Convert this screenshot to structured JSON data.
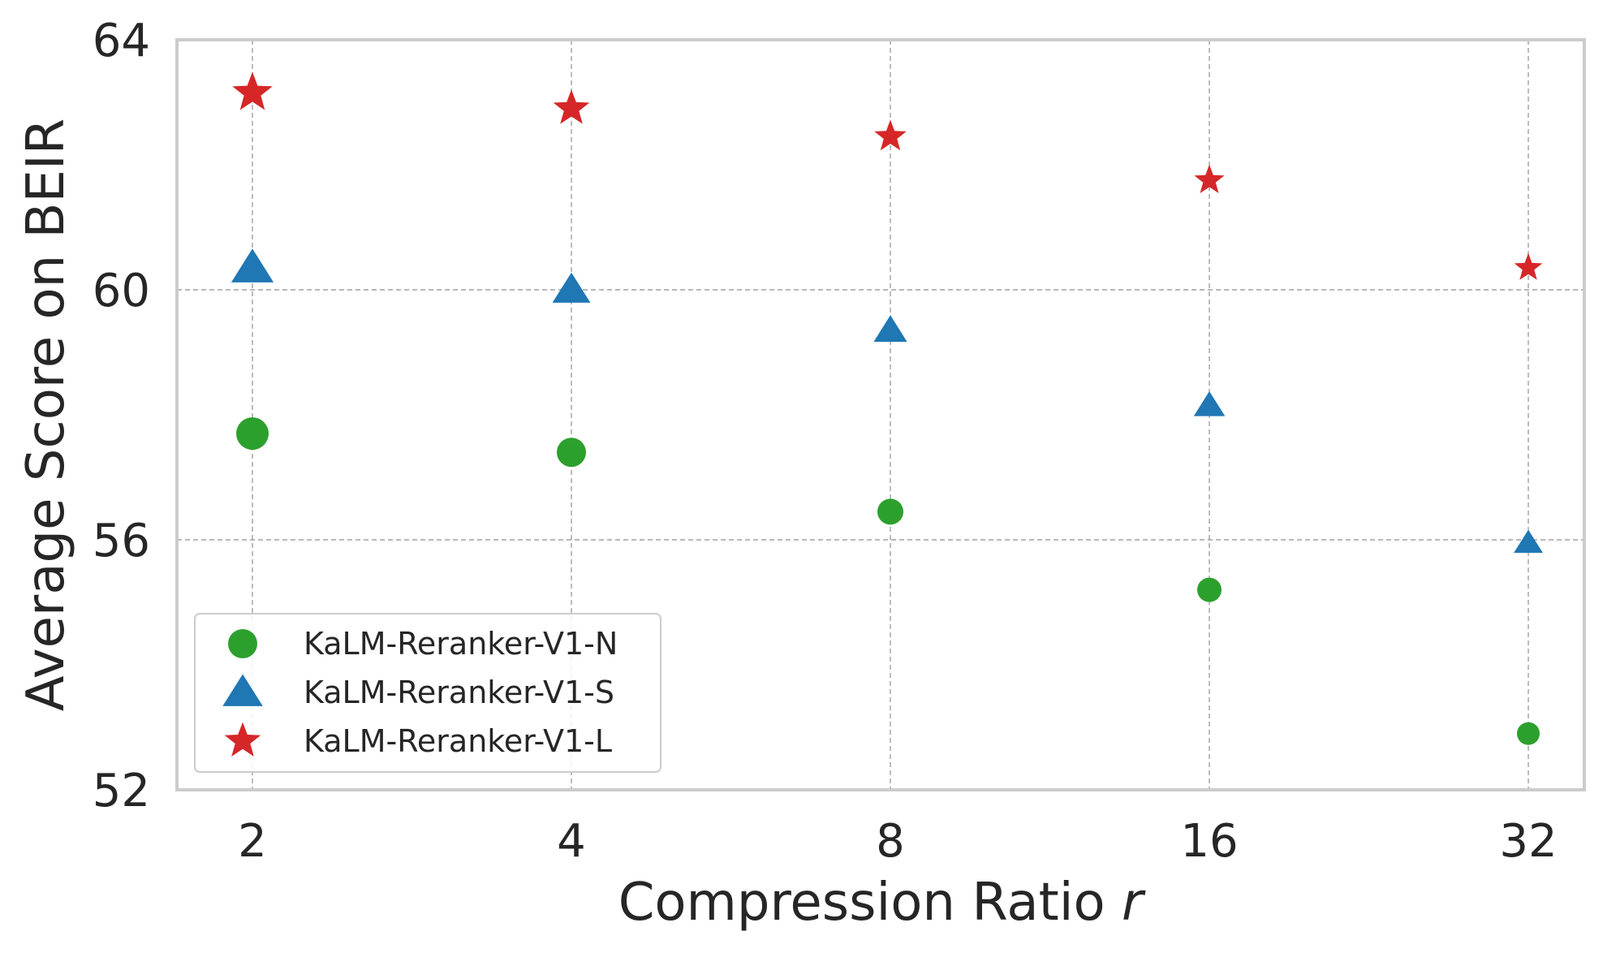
{
  "chart_data": {
    "type": "scatter",
    "xlabel": "Compression Ratio ",
    "xlabel_var": "r",
    "ylabel": "Average Score on BEIR",
    "x": [
      "2",
      "4",
      "8",
      "16",
      "32"
    ],
    "x_scale": "log2",
    "ylim": [
      52,
      64
    ],
    "y_ticks": [
      "52",
      "56",
      "60",
      "64"
    ],
    "grid": true,
    "legend_position": "lower-left",
    "series": [
      {
        "name": "KaLM-Reranker-V1-N",
        "marker": "circle",
        "color": "#2ca02c",
        "values": [
          57.7,
          57.4,
          56.45,
          55.2,
          52.9
        ]
      },
      {
        "name": "KaLM-Reranker-V1-S",
        "marker": "triangle",
        "color": "#1f77b4",
        "values": [
          60.35,
          60.0,
          59.35,
          58.15,
          55.95
        ]
      },
      {
        "name": "KaLM-Reranker-V1-L",
        "marker": "star",
        "color": "#d62728",
        "values": [
          63.15,
          62.9,
          62.45,
          61.75,
          60.35
        ]
      }
    ]
  }
}
